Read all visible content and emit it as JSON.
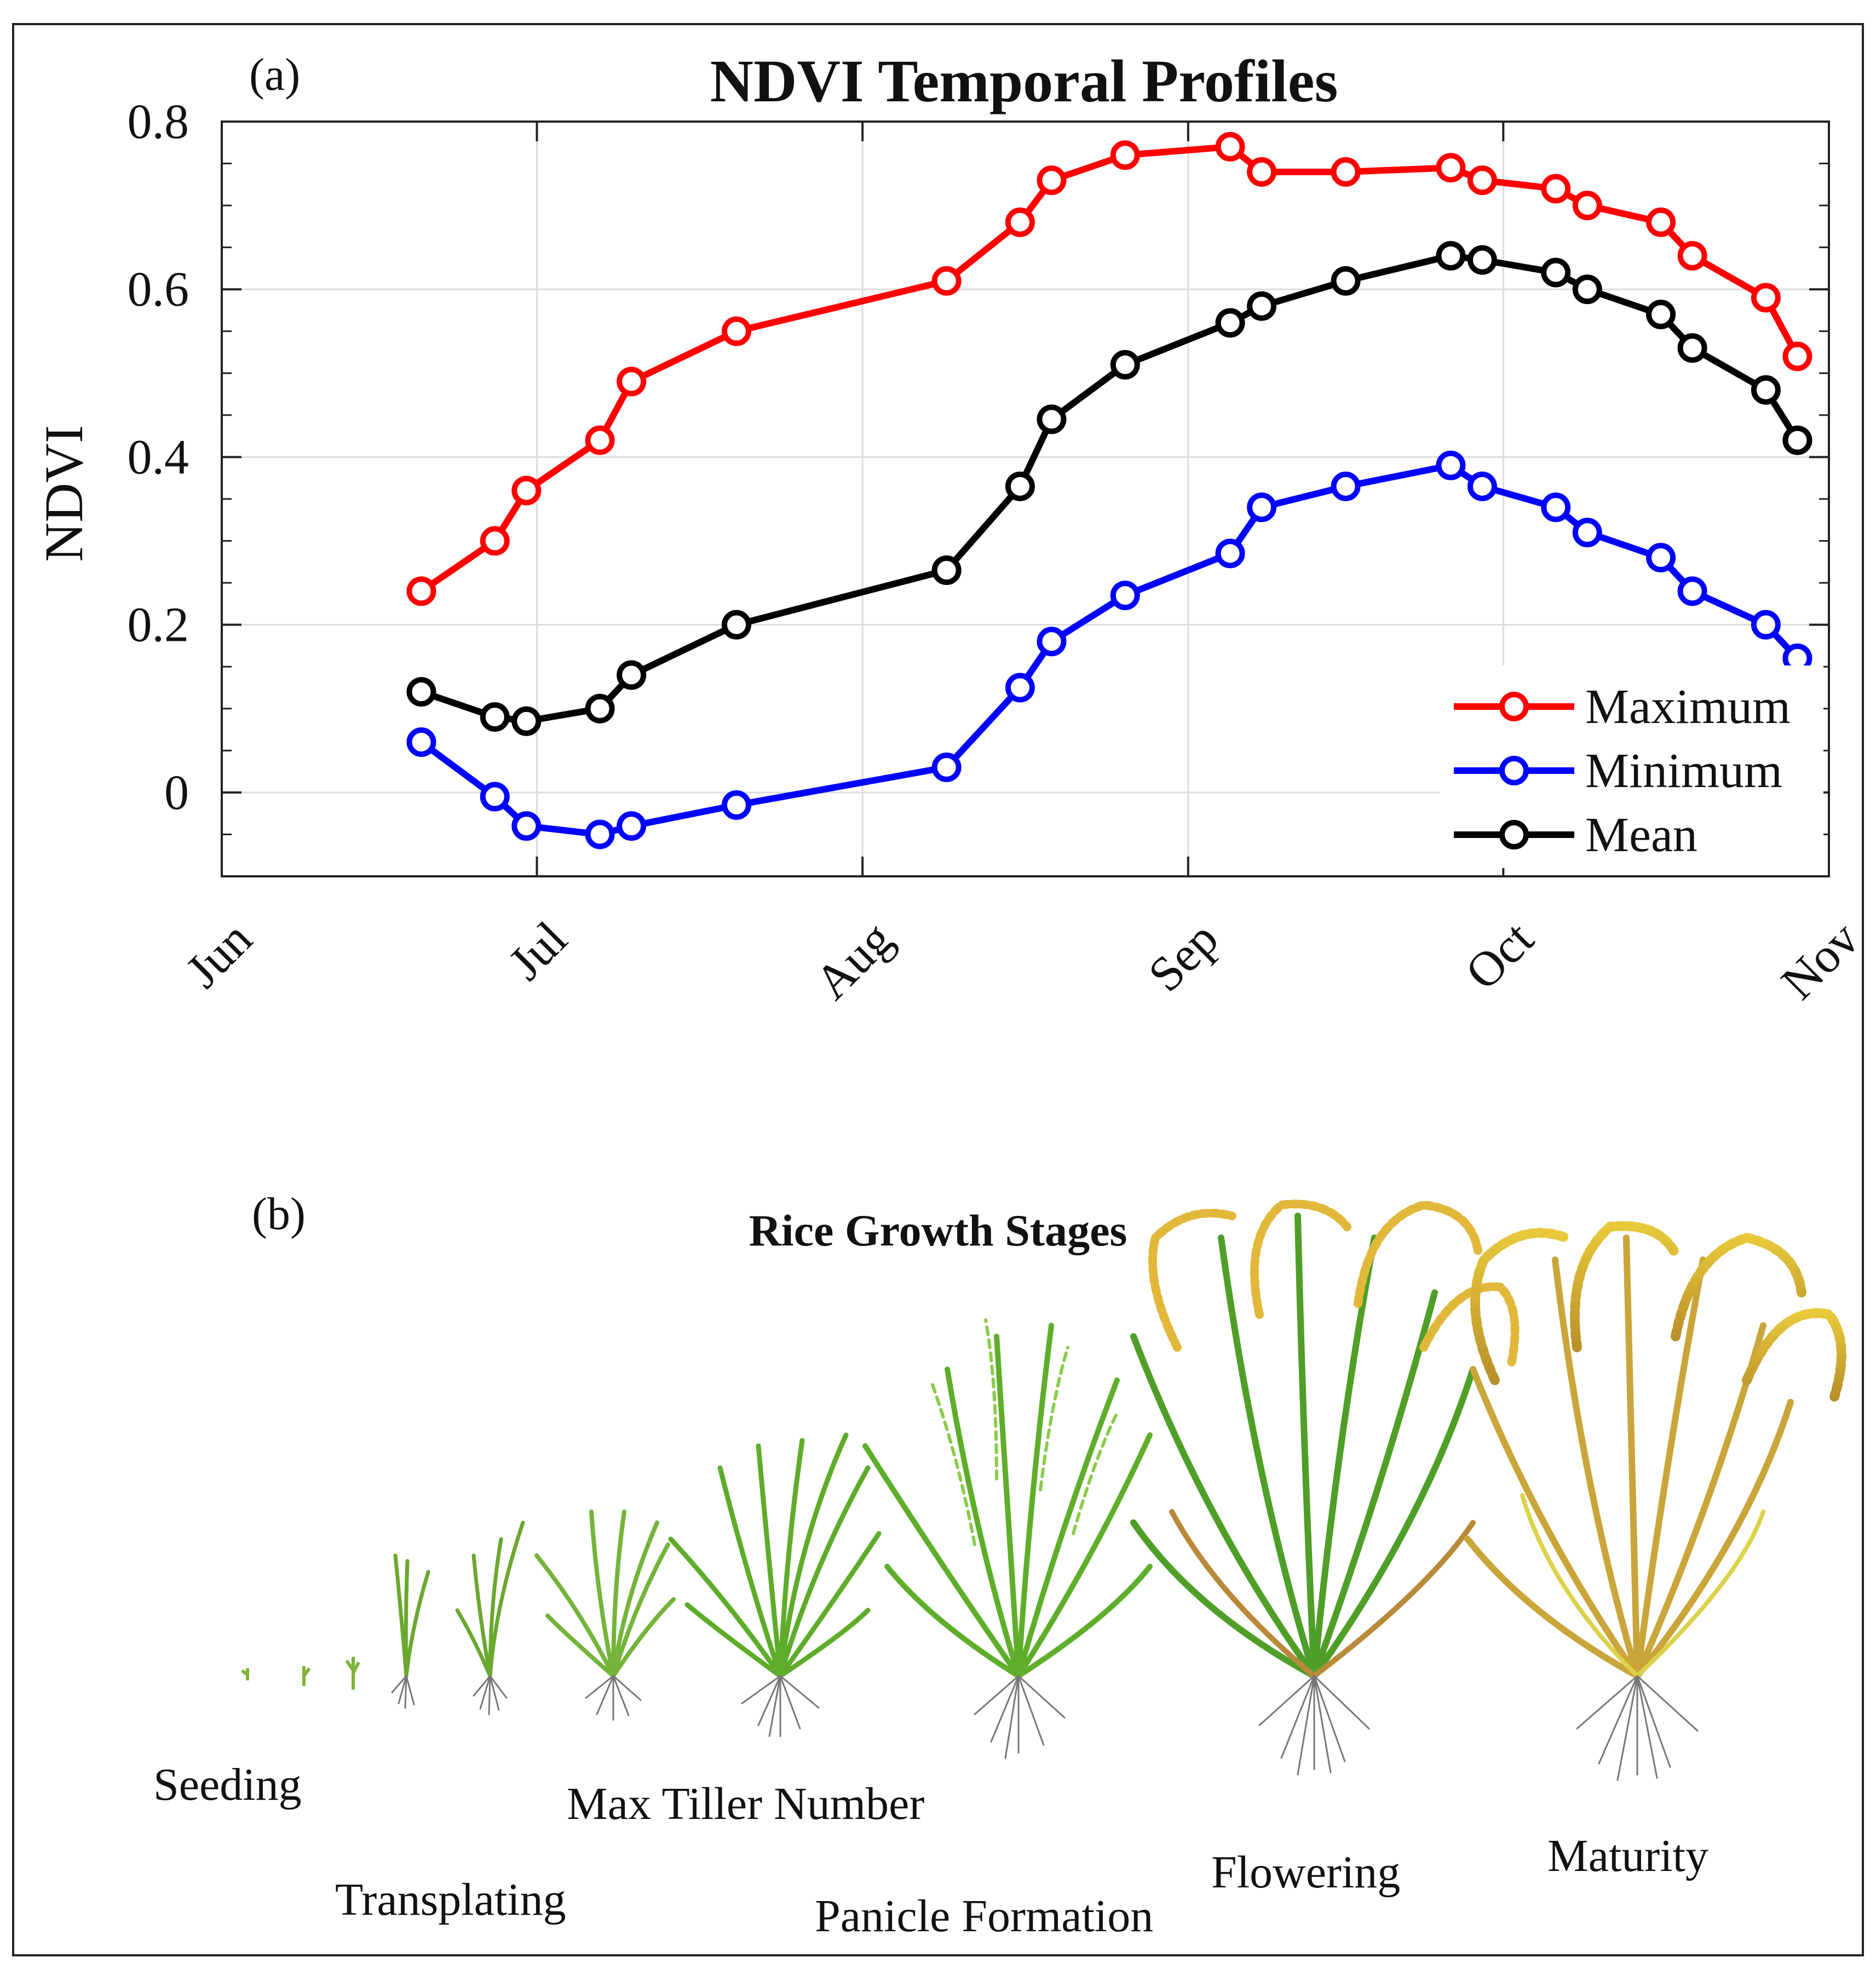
{
  "panel_a_label": "(a)",
  "panel_b_label": "(b)",
  "stages_title": "Rice Growth Stages",
  "stages": [
    "Seeding",
    "Transplating",
    "Max Tiller Number",
    "Panicle Formation",
    "Flowering",
    "Maturity"
  ],
  "chart_data": {
    "type": "line",
    "title": "NDVI Temporal Profiles",
    "xlabel": "",
    "ylabel": "NDVI",
    "x_unit": "day of year",
    "xlim": [
      152,
      305
    ],
    "ylim": [
      -0.1,
      0.8
    ],
    "grid": true,
    "legend_position": "bottom-right",
    "x_ticks": [
      152,
      182,
      213,
      244,
      274,
      305
    ],
    "x_tick_labels": [
      "Jun",
      "Jul",
      "Aug",
      "Sep",
      "Oct",
      "Nov"
    ],
    "y_ticks": [
      0,
      0.2,
      0.4,
      0.6,
      0.8
    ],
    "y_tick_labels": [
      "0",
      "0.2",
      "0.4",
      "0.6",
      "0.8"
    ],
    "x": [
      171,
      178,
      181,
      188,
      191,
      201,
      221,
      228,
      231,
      238,
      248,
      251,
      259,
      269,
      272,
      279,
      282,
      289,
      292,
      299,
      302
    ],
    "series": [
      {
        "name": "Maximum",
        "color": "#ff0000",
        "values": [
          0.24,
          0.3,
          0.36,
          0.42,
          0.49,
          0.55,
          0.61,
          0.68,
          0.73,
          0.76,
          0.77,
          0.74,
          0.74,
          0.745,
          0.73,
          0.72,
          0.7,
          0.68,
          0.64,
          0.59,
          0.52
        ]
      },
      {
        "name": "Minimum",
        "color": "#0000ff",
        "values": [
          0.06,
          -0.005,
          -0.04,
          -0.05,
          -0.04,
          -0.015,
          0.03,
          0.125,
          0.18,
          0.235,
          0.285,
          0.34,
          0.365,
          0.39,
          0.365,
          0.34,
          0.31,
          0.28,
          0.24,
          0.2,
          0.16
        ]
      },
      {
        "name": "Mean",
        "color": "#000000",
        "values": [
          0.12,
          0.09,
          0.085,
          0.1,
          0.14,
          0.2,
          0.265,
          0.365,
          0.445,
          0.51,
          0.56,
          0.58,
          0.61,
          0.64,
          0.635,
          0.62,
          0.6,
          0.57,
          0.53,
          0.48,
          0.42
        ]
      }
    ]
  }
}
